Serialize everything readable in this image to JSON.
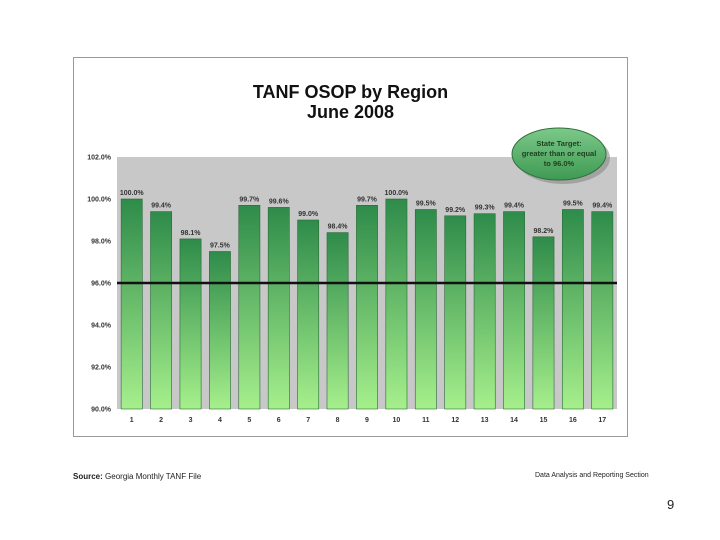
{
  "chart_data": {
    "type": "bar",
    "title": "TANF OSOP by Region",
    "subtitle": "June 2008",
    "categories": [
      "1",
      "2",
      "3",
      "4",
      "5",
      "6",
      "7",
      "8",
      "9",
      "10",
      "11",
      "12",
      "13",
      "14",
      "15",
      "16",
      "17"
    ],
    "values": [
      100.0,
      99.4,
      98.1,
      97.5,
      99.7,
      99.6,
      99.0,
      98.4,
      99.7,
      100.0,
      99.5,
      99.2,
      99.3,
      99.4,
      98.2,
      99.5,
      99.4
    ],
    "data_labels": [
      "100.0%",
      "99.4%",
      "98.1%",
      "97.5%",
      "99.7%",
      "99.6%",
      "99.0%",
      "98.4%",
      "99.7%",
      "100.0%",
      "99.5%",
      "99.2%",
      "99.3%",
      "99.4%",
      "98.2%",
      "99.5%",
      "99.4%"
    ],
    "ylim": [
      90,
      102
    ],
    "yticks": [
      90,
      92,
      94,
      96,
      98,
      100,
      102
    ],
    "ytick_labels": [
      "90.0%",
      "92.0%",
      "94.0%",
      "96.0%",
      "98.0%",
      "100.0%",
      "102.0%"
    ],
    "target": 96.0,
    "target_label": "State Target: greater than or equal to 96.0%",
    "target_label_lines": [
      "State Target:",
      "greater than or equal",
      "to 96.0%"
    ],
    "colors": {
      "bar_top": "#2e8b4a",
      "bar_bottom": "#a6ef8c",
      "plot_bg": "#c8c8c8",
      "target_line": "#111111",
      "badge": "#4aa35a"
    }
  },
  "footer": {
    "source_label": "Source:",
    "source_text": "Georgia Monthly TANF File",
    "right_text": "Data Analysis and Reporting Section"
  },
  "page_number": "9"
}
